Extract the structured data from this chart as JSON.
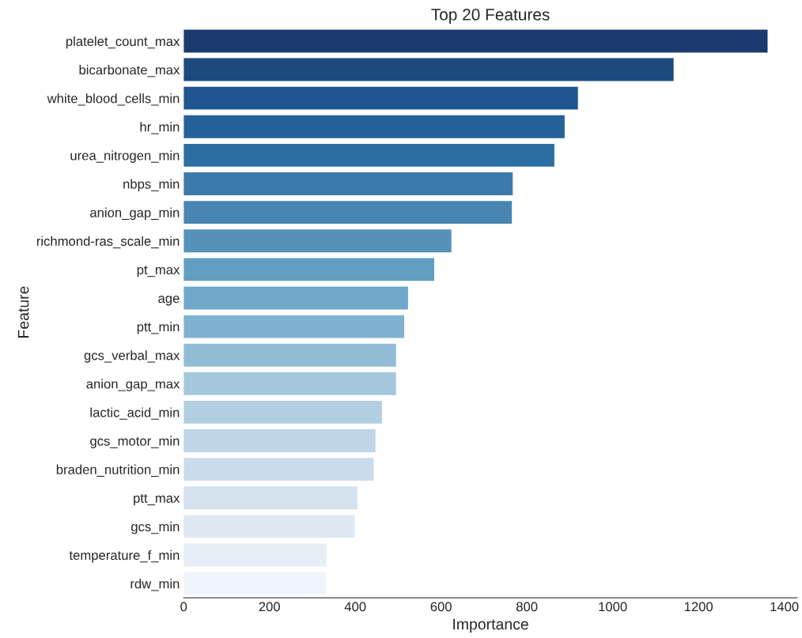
{
  "chart_data": {
    "type": "bar",
    "orientation": "horizontal",
    "title": "Top 20 Features",
    "xlabel": "Importance",
    "ylabel": "Feature",
    "categories": [
      "platelet_count_max",
      "bicarbonate_max",
      "white_blood_cells_min",
      "hr_min",
      "urea_nitrogen_min",
      "nbps_min",
      "anion_gap_min",
      "richmond-ras_scale_min",
      "pt_max",
      "age",
      "ptt_min",
      "gcs_verbal_max",
      "anion_gap_max",
      "lactic_acid_min",
      "gcs_motor_min",
      "braden_nutrition_min",
      "ptt_max",
      "gcs_min",
      "temperature_f_min",
      "rdw_min"
    ],
    "values": [
      1361,
      1142,
      919,
      888,
      864,
      767,
      765,
      624,
      584,
      523,
      514,
      495,
      495,
      462,
      447,
      443,
      405,
      399,
      333,
      331
    ],
    "colors": [
      "#1b3b70",
      "#1c4a7f",
      "#20568f",
      "#26629a",
      "#2d6ea3",
      "#3b7aab",
      "#4885b3",
      "#5592ba",
      "#629dc2",
      "#70a8c9",
      "#7fb2d0",
      "#92bcd5",
      "#a4c7dc",
      "#b1cfe1",
      "#bed6e7",
      "#cadcec",
      "#d5e2ef",
      "#dfe9f3",
      "#e6eef7",
      "#eef4fb"
    ],
    "xlim": [
      0,
      1430
    ],
    "xticks": [
      0,
      200,
      400,
      600,
      800,
      1000,
      1200,
      1400
    ],
    "grid": false,
    "legend": false
  }
}
